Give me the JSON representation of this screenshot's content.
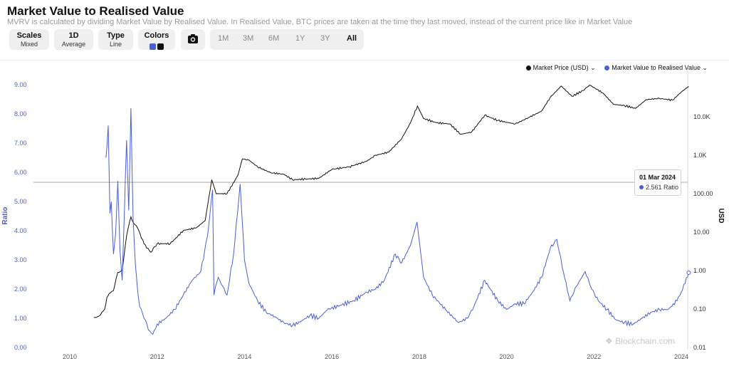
{
  "header": {
    "title": "Market Value to Realised Value",
    "subtitle": "MVRV is calculated by dividing Market Value by Realised Value. In Realised Value, BTC prices are taken at the time they last moved, instead of the current price like in Market Value"
  },
  "controls": {
    "scales": {
      "label": "Scales",
      "value": "Mixed"
    },
    "interval": {
      "label": "1D",
      "value": "Average"
    },
    "type": {
      "label": "Type",
      "value": "Line"
    },
    "colors": {
      "label": "Colors",
      "swatches": [
        "#4a5fd6",
        "#111111"
      ]
    },
    "camera_icon": "camera-icon",
    "ranges": [
      "1M",
      "3M",
      "6M",
      "1Y",
      "3Y",
      "All"
    ],
    "active_range": "All"
  },
  "legend": {
    "market_price": "Market Price (USD)",
    "mvrv": "Market Value to Realised Value"
  },
  "tooltip": {
    "date": "01 Mar 2024",
    "value": "2.561 Ratio"
  },
  "watermark": "Blockchain.com",
  "chart_data": {
    "type": "line",
    "x_ticks": [
      "2010",
      "2012",
      "2014",
      "2016",
      "2018",
      "2020",
      "2022",
      "2024"
    ],
    "left_axis": {
      "label": "Ratio",
      "ticks": [
        "0.00",
        "1.00",
        "2.00",
        "3.00",
        "4.00",
        "5.00",
        "6.00",
        "7.00",
        "8.00",
        "9.00"
      ],
      "range": [
        0,
        9
      ]
    },
    "right_axis": {
      "label": "USD",
      "scale": "log",
      "ticks": [
        "0.01",
        "0.10",
        "1.00",
        "10.00",
        "100.00",
        "1.0K",
        "10.0K"
      ]
    },
    "grid": false,
    "legend_position": "top-right",
    "colors": {
      "mvrv": "#4a5fd6",
      "price": "#111111"
    },
    "series": [
      {
        "name": "Market Value to Realised Value",
        "axis": "left",
        "x": [
          2010.83,
          2010.88,
          2010.92,
          2010.95,
          2011.0,
          2011.05,
          2011.1,
          2011.15,
          2011.2,
          2011.25,
          2011.3,
          2011.35,
          2011.4,
          2011.45,
          2011.5,
          2011.55,
          2011.6,
          2011.7,
          2011.8,
          2011.9,
          2012.0,
          2012.2,
          2012.4,
          2012.6,
          2012.8,
          2013.0,
          2013.15,
          2013.27,
          2013.3,
          2013.4,
          2013.5,
          2013.6,
          2013.75,
          2013.9,
          2014.0,
          2014.1,
          2014.3,
          2014.5,
          2014.7,
          2014.9,
          2015.1,
          2015.3,
          2015.5,
          2015.7,
          2015.9,
          2016.2,
          2016.5,
          2016.8,
          2017.0,
          2017.2,
          2017.45,
          2017.6,
          2017.8,
          2017.95,
          2018.1,
          2018.3,
          2018.6,
          2018.9,
          2019.1,
          2019.25,
          2019.5,
          2019.8,
          2020.0,
          2020.2,
          2020.4,
          2020.6,
          2020.8,
          2021.0,
          2021.15,
          2021.3,
          2021.45,
          2021.6,
          2021.8,
          2021.95,
          2022.1,
          2022.3,
          2022.5,
          2022.7,
          2022.9,
          2023.1,
          2023.3,
          2023.5,
          2023.7,
          2023.9,
          2024.0,
          2024.17
        ],
        "values": [
          6.5,
          7.6,
          4.6,
          5.0,
          3.2,
          3.9,
          5.7,
          3.3,
          2.3,
          4.6,
          7.1,
          4.7,
          8.2,
          4.4,
          2.9,
          2.0,
          1.4,
          1.0,
          0.6,
          0.45,
          0.8,
          1.0,
          1.3,
          1.8,
          2.3,
          2.6,
          3.8,
          5.4,
          1.8,
          2.4,
          2.1,
          1.8,
          3.2,
          5.6,
          3.0,
          2.2,
          1.6,
          1.2,
          1.05,
          0.85,
          0.75,
          0.9,
          1.1,
          1.0,
          1.3,
          1.45,
          1.6,
          1.9,
          2.0,
          2.3,
          3.2,
          2.9,
          3.5,
          4.3,
          2.4,
          1.8,
          1.3,
          0.85,
          1.0,
          1.4,
          2.3,
          1.6,
          1.3,
          1.5,
          1.5,
          1.9,
          2.4,
          3.4,
          3.7,
          2.6,
          1.6,
          2.1,
          2.6,
          2.0,
          1.6,
          1.3,
          0.95,
          0.85,
          0.8,
          1.0,
          1.2,
          1.3,
          1.3,
          1.6,
          1.9,
          2.561
        ]
      },
      {
        "name": "Market Price (USD)",
        "axis": "right",
        "x": [
          2010.55,
          2010.6,
          2010.7,
          2010.8,
          2010.85,
          2010.9,
          2011.0,
          2011.1,
          2011.2,
          2011.3,
          2011.4,
          2011.45,
          2011.55,
          2011.7,
          2011.85,
          2012.0,
          2012.3,
          2012.6,
          2012.9,
          2013.1,
          2013.25,
          2013.35,
          2013.6,
          2013.85,
          2013.95,
          2014.1,
          2014.3,
          2014.6,
          2014.9,
          2015.1,
          2015.4,
          2015.7,
          2016.0,
          2016.4,
          2016.8,
          2017.0,
          2017.3,
          2017.6,
          2017.8,
          2017.96,
          2018.1,
          2018.4,
          2018.7,
          2018.95,
          2019.2,
          2019.5,
          2019.8,
          2020.0,
          2020.2,
          2020.5,
          2020.8,
          2021.0,
          2021.25,
          2021.5,
          2021.75,
          2021.9,
          2022.2,
          2022.45,
          2022.7,
          2022.95,
          2023.2,
          2023.5,
          2023.8,
          2024.0,
          2024.17
        ],
        "values": [
          0.06,
          0.06,
          0.07,
          0.1,
          0.2,
          0.25,
          0.3,
          0.9,
          1.0,
          8,
          25,
          18,
          13,
          5,
          3,
          5,
          5,
          11,
          13,
          20,
          230,
          100,
          100,
          300,
          800,
          750,
          500,
          350,
          320,
          230,
          240,
          250,
          430,
          500,
          700,
          1000,
          1200,
          2700,
          7000,
          19000,
          9000,
          7000,
          6500,
          3500,
          4000,
          11000,
          8000,
          7200,
          6500,
          9500,
          14000,
          32000,
          63000,
          34000,
          48000,
          67000,
          42000,
          21000,
          19500,
          16500,
          28000,
          30000,
          27000,
          44000,
          62000
        ]
      }
    ]
  }
}
